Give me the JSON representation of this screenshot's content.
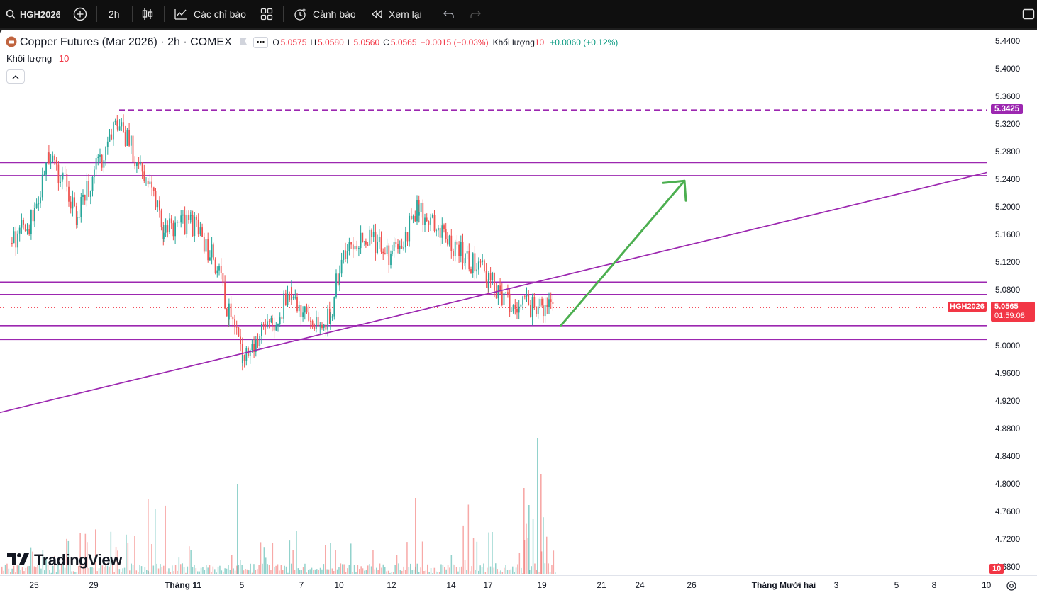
{
  "toolbar": {
    "symbol": "HGH2026",
    "interval": "2h",
    "indicators_label": "Các chỉ báo",
    "alerts_label": "Cảnh báo",
    "replay_label": "Xem lại"
  },
  "legend": {
    "title": "Copper Futures (Mar 2026) · 2h · COMEX",
    "o_label": "O",
    "o_value": "5.0575",
    "h_label": "H",
    "h_value": "5.0580",
    "l_label": "L",
    "l_value": "5.0560",
    "c_label": "C",
    "c_value": "5.0565",
    "change": "−0.0015 (−0.03%)",
    "volume_label": "Khối lượng",
    "volume_value": "10",
    "volume_change": "+0.0060 (+0.12%)"
  },
  "volume_pane": {
    "label": "Khối lượng",
    "value": "10"
  },
  "brand": "TradingView",
  "price_axis": {
    "ticks": [
      "5.4400",
      "5.4000",
      "5.3600",
      "5.3200",
      "5.2800",
      "5.2400",
      "5.2000",
      "5.1600",
      "5.1200",
      "5.0800",
      "5.0000",
      "4.9600",
      "4.9200",
      "4.8800",
      "4.8400",
      "4.8000",
      "4.7600",
      "4.7200",
      "4.6800"
    ],
    "line_label": "5.3425",
    "symbol_tag": "HGH2026",
    "last_price": "5.0565",
    "countdown": "01:59:08",
    "volume_tag": "10"
  },
  "time_axis": [
    {
      "label": "25",
      "bold": false
    },
    {
      "label": "29",
      "bold": false
    },
    {
      "label": "Tháng 11",
      "bold": true
    },
    {
      "label": "5",
      "bold": false
    },
    {
      "label": "7",
      "bold": false
    },
    {
      "label": "10",
      "bold": false
    },
    {
      "label": "12",
      "bold": false
    },
    {
      "label": "14",
      "bold": false
    },
    {
      "label": "17",
      "bold": false
    },
    {
      "label": "19",
      "bold": false
    },
    {
      "label": "21",
      "bold": false
    },
    {
      "label": "24",
      "bold": false
    },
    {
      "label": "26",
      "bold": false
    },
    {
      "label": "Tháng Mười hai",
      "bold": true
    },
    {
      "label": "3",
      "bold": false
    },
    {
      "label": "5",
      "bold": false
    },
    {
      "label": "8",
      "bold": false
    },
    {
      "label": "10",
      "bold": false
    }
  ],
  "colors": {
    "up": "#26a69a",
    "down": "#ef5350",
    "drawing": "#9c27b0",
    "arrow": "#4caf50",
    "last": "#f23645"
  },
  "chart_data": {
    "type": "candlestick",
    "symbol": "HGH2026",
    "interval": "2h",
    "close_path": [
      {
        "t": "Oct 24",
        "p": 5.15
      },
      {
        "t": "Oct 25",
        "p": 5.19
      },
      {
        "t": "Oct 26",
        "p": 5.27
      },
      {
        "t": "Oct 27",
        "p": 5.24
      },
      {
        "t": "Oct 28",
        "p": 5.19
      },
      {
        "t": "Oct 29",
        "p": 5.25
      },
      {
        "t": "Oct 30",
        "p": 5.33
      },
      {
        "t": "Oct 31",
        "p": 5.26
      },
      {
        "t": "Nov 1",
        "p": 5.17
      },
      {
        "t": "Nov 2",
        "p": 5.18
      },
      {
        "t": "Nov 3",
        "p": 5.13
      },
      {
        "t": "Nov 4",
        "p": 5.05
      },
      {
        "t": "Nov 5",
        "p": 4.99
      },
      {
        "t": "Nov 6",
        "p": 5.03
      },
      {
        "t": "Nov 7",
        "p": 5.08
      },
      {
        "t": "Nov 8",
        "p": 5.03
      },
      {
        "t": "Nov 9",
        "p": 5.04
      },
      {
        "t": "Nov 10",
        "p": 5.12
      },
      {
        "t": "Nov 11",
        "p": 5.16
      },
      {
        "t": "Nov 12",
        "p": 5.13
      },
      {
        "t": "Nov 13",
        "p": 5.2
      },
      {
        "t": "Nov 14",
        "p": 5.15
      },
      {
        "t": "Nov 15",
        "p": 5.13
      },
      {
        "t": "Nov 17",
        "p": 5.1
      },
      {
        "t": "Nov 18",
        "p": 5.06
      },
      {
        "t": "Nov 19",
        "p": 5.0565
      }
    ],
    "horizontal_lines": [
      5.2665,
      5.2475,
      5.0935,
      5.0755,
      5.0305,
      5.0105
    ],
    "dashed_line": 5.3425,
    "trendline": {
      "from": {
        "t": "Oct 23",
        "p": 4.905
      },
      "to": {
        "t": "Dec 10",
        "p": 5.252
      }
    },
    "projection_arrow": {
      "from": {
        "t": "Nov 19",
        "p": 5.031
      },
      "to": {
        "t": "Nov 26",
        "p": 5.24
      }
    },
    "last_price": 5.0565,
    "volume_max": 10
  }
}
